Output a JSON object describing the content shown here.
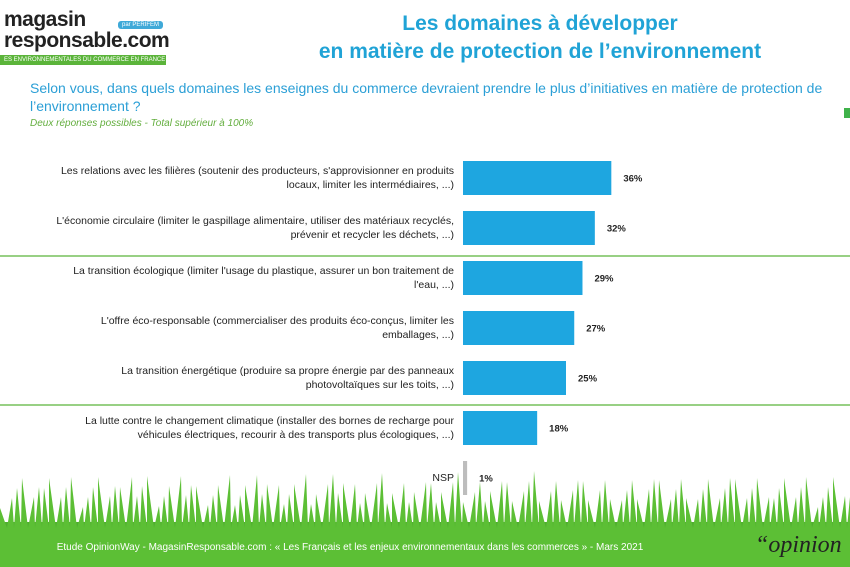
{
  "header": {
    "logo_line1": "magasin",
    "logo_line2": "responsable.com",
    "logo_badge": "par PERIFEM",
    "logo_tagline": "ES ENVIRONNEMENTALES DU COMMERCE EN FRANCE"
  },
  "chart_data": {
    "type": "bar",
    "orientation": "horizontal",
    "title": [
      "Les domaines à développer",
      "en matière de protection de l’environnement"
    ],
    "question": "Selon vous, dans quels domaines les enseignes du commerce devraient prendre le plus d’initiatives en matière de protection de l’environnement ?",
    "note": "Deux réponses possibles - Total supérieur à 100%",
    "categories": [
      "Les relations avec les filières (soutenir des producteurs, s'approvisionner en produits locaux, limiter les intermédiaires, ...)",
      "L'économie circulaire (limiter le gaspillage alimentaire, utiliser des matériaux recyclés, prévenir et recycler les déchets, ...)",
      "La transition écologique (limiter l'usage du plastique, assurer un bon traitement de l'eau, ...)",
      "L'offre éco-responsable (commercialiser des produits éco-conçus, limiter les emballages, ...)",
      "La transition énergétique (produire sa propre énergie par des panneaux photovoltaïques sur les toits, ...)",
      "La lutte contre le changement climatique (installer des bornes de recharge pour véhicules électriques, recourir à des transports plus écologiques, ...)",
      "NSP"
    ],
    "values": [
      36,
      32,
      29,
      27,
      25,
      18,
      1
    ],
    "value_labels": [
      "36%",
      "32%",
      "29%",
      "27%",
      "25%",
      "18%",
      "1%"
    ],
    "color": "#1ea6e0",
    "small_color": "#bdbdbd"
  },
  "footer": "Etude OpinionWay - MagasinResponsable.com : « Les Français et les enjeux environnementaux dans les commerces » - Mars 2021",
  "brand": "“opinion"
}
